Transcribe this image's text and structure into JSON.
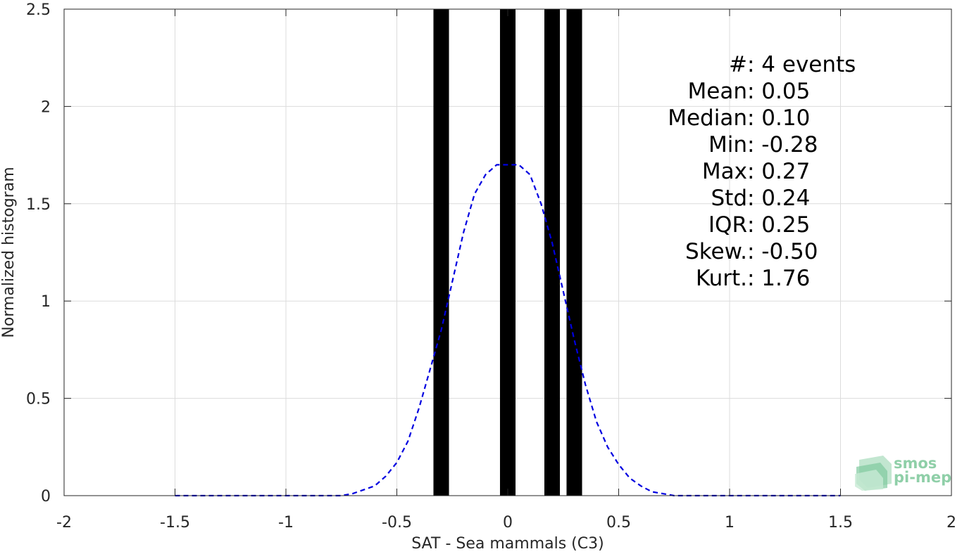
{
  "chart_data": {
    "type": "bar",
    "title": "",
    "xlabel": "SAT - Sea mammals (C3)",
    "ylabel": "Normalized histogram",
    "xlim": [
      -2,
      2
    ],
    "ylim": [
      0,
      2.5
    ],
    "grid": true,
    "x_ticks": [
      -2,
      -1.5,
      -1,
      -0.5,
      0,
      0.5,
      1,
      1.5,
      2
    ],
    "x_tick_labels": [
      "-2",
      "-1.5",
      "-1",
      "-0.5",
      "0",
      "0.5",
      "1",
      "1.5",
      "2"
    ],
    "y_ticks": [
      0,
      0.5,
      1,
      1.5,
      2,
      2.5
    ],
    "y_tick_labels": [
      "0",
      "0.5",
      "1",
      "1.5",
      "2",
      "2.5"
    ],
    "bins": [
      {
        "x_start": -0.335,
        "x_end": -0.265,
        "value": 2.5
      },
      {
        "x_start": -0.035,
        "x_end": 0.035,
        "value": 2.5
      },
      {
        "x_start": 0.165,
        "x_end": 0.235,
        "value": 2.5
      },
      {
        "x_start": 0.265,
        "x_end": 0.335,
        "value": 2.5
      }
    ],
    "bar_color": "#000000",
    "fit_curve": {
      "style": "dashed",
      "color": "#0000e0",
      "x": [
        -1.5,
        -1.0,
        -0.75,
        -0.7,
        -0.65,
        -0.6,
        -0.55,
        -0.5,
        -0.45,
        -0.4,
        -0.35,
        -0.3,
        -0.25,
        -0.2,
        -0.15,
        -0.1,
        -0.05,
        0.0,
        0.05,
        0.1,
        0.15,
        0.2,
        0.25,
        0.3,
        0.35,
        0.4,
        0.45,
        0.5,
        0.55,
        0.6,
        0.65,
        0.7,
        0.75,
        0.8,
        0.9,
        1.0,
        1.5
      ],
      "y": [
        0.0,
        0.0,
        0.0,
        0.01,
        0.03,
        0.05,
        0.1,
        0.17,
        0.28,
        0.45,
        0.65,
        0.85,
        1.1,
        1.35,
        1.55,
        1.65,
        1.7,
        1.7,
        1.7,
        1.65,
        1.5,
        1.3,
        1.05,
        0.8,
        0.57,
        0.38,
        0.25,
        0.16,
        0.09,
        0.05,
        0.02,
        0.01,
        0.0,
        0.0,
        0.0,
        0.0,
        0.0
      ]
    },
    "stats": [
      {
        "label": "#",
        "sep": "  : ",
        "value": "4 events"
      },
      {
        "label": "Mean",
        "sep": " : ",
        "value": "0.05"
      },
      {
        "label": "Median",
        "sep": " : ",
        "value": "0.10"
      },
      {
        "label": "Min",
        "sep": " : ",
        "value": "-0.28"
      },
      {
        "label": "Max",
        "sep": " : ",
        "value": "0.27"
      },
      {
        "label": "Std",
        "sep": " : ",
        "value": "0.24"
      },
      {
        "label": "IQR",
        "sep": " : ",
        "value": "0.25"
      },
      {
        "label": "Skew.",
        "sep": " : ",
        "value": "-0.50"
      },
      {
        "label": "Kurt.",
        "sep": " : ",
        "value": "1.76"
      }
    ]
  },
  "logo": {
    "line1": "smos",
    "line2": "pi-mep",
    "color": "#8fcfa8"
  }
}
